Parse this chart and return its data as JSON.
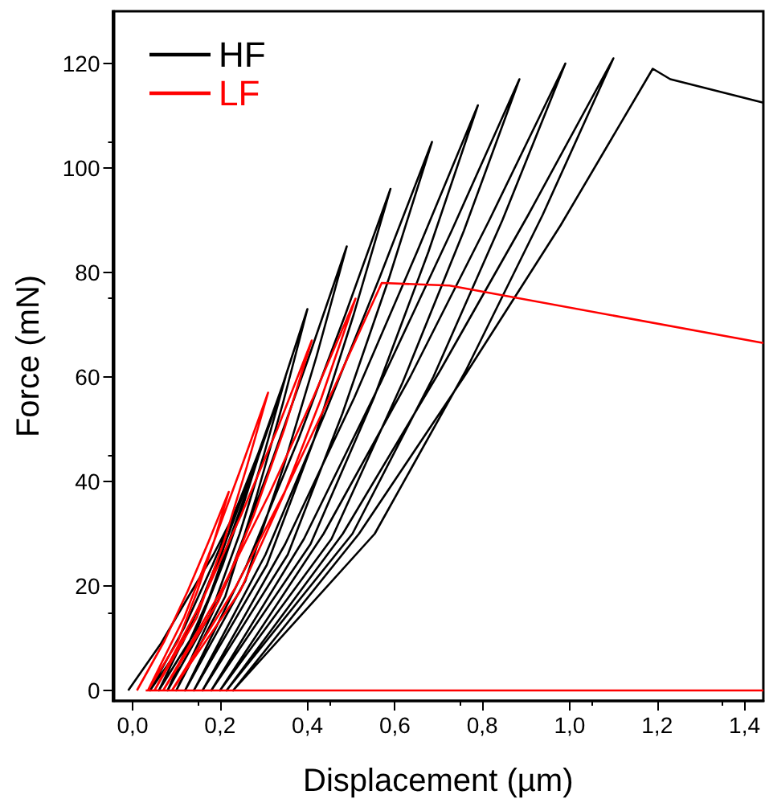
{
  "chart_data": {
    "type": "line",
    "xlabel": "Displacement (µm)",
    "ylabel": "Force (mN)",
    "xlim": [
      -0.045,
      1.443
    ],
    "ylim": [
      -2,
      130
    ],
    "xticks": [
      {
        "value": 0,
        "label": "0,0"
      },
      {
        "value": 0.2,
        "label": "0,2"
      },
      {
        "value": 0.4,
        "label": "0,4"
      },
      {
        "value": 0.6,
        "label": "0,6"
      },
      {
        "value": 0.8,
        "label": "0,8"
      },
      {
        "value": 1,
        "label": "1,0"
      },
      {
        "value": 1.2,
        "label": "1,2"
      },
      {
        "value": 1.4,
        "label": "1,4"
      }
    ],
    "yticks": [
      0,
      20,
      40,
      60,
      80,
      100,
      120
    ],
    "grid": false,
    "legend": "top left",
    "marker": "none",
    "line_style": "solid",
    "series": [
      {
        "name": "HF",
        "color": "#000000",
        "x": [
          -0.01,
          0.065,
          0.128,
          0.185,
          0.24,
          0.203,
          0.162,
          0.114,
          0.04,
          0.118,
          0.183,
          0.243,
          0.3,
          0.255,
          0.206,
          0.149,
          0.06,
          0.147,
          0.22,
          0.286,
          0.35,
          0.3,
          0.245,
          0.18,
          0.08,
          0.176,
          0.256,
          0.33,
          0.4,
          0.344,
          0.283,
          0.212,
          0.1,
          0.217,
          0.315,
          0.404,
          0.49,
          0.421,
          0.346,
          0.258,
          0.12,
          0.261,
          0.379,
          0.487,
          0.59,
          0.506,
          0.415,
          0.307,
          0.14,
          0.304,
          0.44,
          0.565,
          0.685,
          0.587,
          0.48,
          0.355,
          0.16,
          0.349,
          0.507,
          0.651,
          0.79,
          0.677,
          0.552,
          0.407,
          0.18,
          0.392,
          0.568,
          0.73,
          0.885,
          0.758,
          0.618,
          0.455,
          0.2,
          0.437,
          0.635,
          0.816,
          0.99,
          0.846,
          0.688,
          0.503,
          0.215,
          0.481,
          0.702,
          0.905,
          1.1,
          0.938,
          0.761,
          0.554,
          0.23,
          0.518,
          0.758,
          0.979,
          1.19,
          1.23,
          1.443
        ],
        "values": [
          0,
          9,
          18,
          26,
          35,
          26,
          18,
          9,
          0,
          12,
          24,
          36,
          48,
          36,
          24,
          12,
          0,
          15,
          30,
          45,
          60,
          45,
          30,
          15,
          0,
          18,
          37,
          55,
          73,
          55,
          37,
          18,
          0,
          21,
          43,
          64,
          85,
          64,
          43,
          21,
          0,
          24,
          48,
          72,
          96,
          72,
          48,
          24,
          0,
          26,
          53,
          79,
          105,
          79,
          53,
          26,
          0,
          28,
          56,
          84,
          112,
          84,
          56,
          28,
          0,
          29,
          59,
          88,
          117,
          88,
          59,
          29,
          0,
          30,
          60,
          90,
          120,
          90,
          60,
          30,
          0,
          30,
          61,
          91,
          121,
          91,
          61,
          30,
          0,
          30,
          60,
          89,
          119,
          117,
          112.5
        ]
      },
      {
        "name": "LF",
        "color": "#ff0000",
        "x": [
          0.01,
          0.073,
          0.126,
          0.174,
          0.22,
          0.186,
          0.148,
          0.104,
          0.035,
          0.118,
          0.186,
          0.25,
          0.31,
          0.262,
          0.209,
          0.147,
          0.05,
          0.158,
          0.248,
          0.331,
          0.41,
          0.347,
          0.277,
          0.196,
          0.07,
          0.202,
          0.312,
          0.413,
          0.51,
          0.432,
          0.346,
          0.246,
          0.09,
          0.234,
          0.354,
          0.464,
          0.57,
          0.725,
          1.443,
          null,
          0.03,
          1.443
        ],
        "values": [
          0,
          9.5,
          19,
          28.5,
          38,
          28.5,
          19,
          9.5,
          0,
          14,
          28.5,
          43,
          57,
          43,
          28.5,
          14,
          0,
          17,
          33.5,
          50,
          67,
          50,
          33.5,
          17,
          0,
          19,
          37.5,
          56,
          75,
          56,
          37.5,
          19,
          0,
          19.5,
          39,
          58.5,
          78,
          77.5,
          66.5,
          null,
          0,
          0
        ]
      }
    ]
  }
}
